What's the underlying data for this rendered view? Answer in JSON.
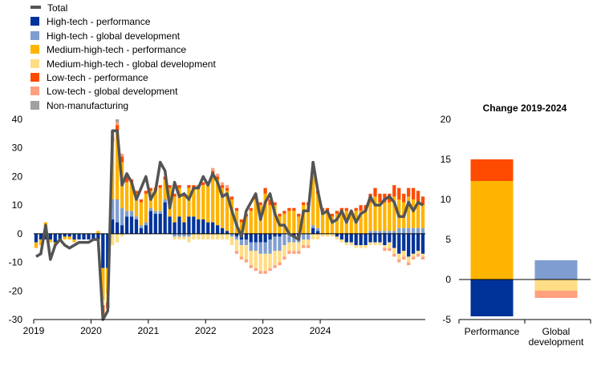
{
  "legend": [
    {
      "key": "total",
      "label": "Total",
      "color": "#545454",
      "type": "line"
    },
    {
      "key": "ht_perf",
      "label": "High-tech - performance",
      "color": "#003399",
      "type": "bar"
    },
    {
      "key": "ht_glob",
      "label": "High-tech - global development",
      "color": "#7f9dd0",
      "type": "bar"
    },
    {
      "key": "mht_perf",
      "label": "Medium-high-tech - performance",
      "color": "#ffb400",
      "type": "bar"
    },
    {
      "key": "mht_glob",
      "label": "Medium-high-tech - global development",
      "color": "#ffdd86",
      "type": "bar"
    },
    {
      "key": "lt_perf",
      "label": "Low-tech - performance",
      "color": "#ff4b00",
      "type": "bar"
    },
    {
      "key": "lt_glob",
      "label": "Low-tech - global development",
      "color": "#ffa07f",
      "type": "bar"
    },
    {
      "key": "nonman",
      "label": "Non-manufacturing",
      "color": "#a0a0a0",
      "type": "bar"
    }
  ],
  "chart_data": [
    {
      "type": "bar",
      "stacked": true,
      "title": "",
      "xlabel": "",
      "ylabel": "",
      "ylim": [
        -30,
        40
      ],
      "yticks": [
        -30,
        -20,
        -10,
        0,
        10,
        20,
        30,
        40
      ],
      "xticks": [
        "2019",
        "2020",
        "2021",
        "2022",
        "2023",
        "2024"
      ],
      "start": "2019-01",
      "frequency": "monthly",
      "series": [
        {
          "key": "ht_perf",
          "name": "High-tech - performance",
          "values": [
            -3,
            -2,
            -2,
            -2,
            -3,
            -2,
            -1,
            -1,
            -2,
            -2,
            -2,
            -2,
            -2,
            -2,
            -12,
            -12,
            5,
            4,
            3,
            6,
            6,
            5,
            2,
            3,
            8,
            7,
            7,
            11,
            6,
            4,
            6,
            4,
            6,
            6,
            5,
            5,
            4,
            4,
            3,
            2,
            1,
            0,
            -1,
            -2,
            -2,
            -3,
            -3,
            -3,
            -3,
            -2,
            -1,
            -1,
            0,
            0,
            -1,
            -1,
            0,
            0,
            2,
            1,
            0,
            0,
            0,
            -1,
            -2,
            -3,
            -3,
            -4,
            -4,
            -4,
            -3,
            -3,
            -3,
            -4,
            -3,
            -5,
            -7,
            -6,
            -8,
            -7,
            -6,
            -7
          ]
        },
        {
          "key": "ht_glob",
          "name": "High-tech - global development",
          "values": [
            0,
            0,
            1,
            0,
            0,
            0,
            0,
            0,
            0,
            0,
            0,
            0,
            0,
            0,
            0,
            0,
            7,
            8,
            6,
            2,
            2,
            1,
            1,
            1,
            1,
            1,
            1,
            1,
            0,
            -1,
            -1,
            -1,
            -1,
            0,
            0,
            0,
            0,
            0,
            0,
            0,
            0,
            -1,
            -1,
            -2,
            -2,
            -3,
            -3,
            -4,
            -4,
            -5,
            -5,
            -5,
            -4,
            -3,
            -2,
            -2,
            -2,
            -2,
            1,
            1,
            0,
            0,
            0,
            0,
            0,
            0,
            0,
            0,
            0,
            0,
            1,
            1,
            1,
            1,
            1,
            1,
            2,
            2,
            2,
            2,
            2,
            2
          ]
        },
        {
          "key": "mht_perf",
          "name": "Medium-high-tech - performance",
          "values": [
            -2,
            -2,
            3,
            -1,
            -1,
            0,
            -1,
            -1,
            -1,
            0,
            0,
            0,
            0,
            1,
            -11,
            -9,
            20,
            24,
            16,
            10,
            10,
            8,
            8,
            10,
            6,
            7,
            8,
            7,
            10,
            9,
            10,
            9,
            10,
            10,
            11,
            12,
            13,
            17,
            16,
            14,
            14,
            12,
            8,
            4,
            6,
            8,
            12,
            10,
            14,
            10,
            10,
            6,
            7,
            8,
            8,
            6,
            10,
            10,
            20,
            12,
            8,
            8,
            6,
            7,
            8,
            8,
            7,
            8,
            8,
            8,
            10,
            12,
            10,
            10,
            10,
            12,
            10,
            9,
            11,
            10,
            9,
            8
          ]
        },
        {
          "key": "mht_glob",
          "name": "Medium-high-tech - global development",
          "values": [
            0,
            0,
            0,
            0,
            0,
            0,
            0,
            0,
            0,
            0,
            0,
            0,
            0,
            0,
            -2,
            -3,
            -4,
            -3,
            -1,
            0,
            0,
            0,
            0,
            0,
            0,
            0,
            0,
            0,
            0,
            -1,
            -1,
            -1,
            -2,
            -2,
            -2,
            -2,
            -2,
            -2,
            -2,
            -2,
            -2,
            -3,
            -4,
            -4,
            -5,
            -5,
            -6,
            -6,
            -6,
            -5,
            -5,
            -4,
            -4,
            -3,
            -3,
            -3,
            -2,
            -2,
            -2,
            -2,
            -1,
            -1,
            -1,
            -1,
            -1,
            -1,
            -1,
            -1,
            -1,
            -1,
            -1,
            -1,
            -1,
            -1,
            -2,
            -2,
            -2,
            -2,
            -2,
            -1,
            -1,
            -1
          ]
        },
        {
          "key": "lt_perf",
          "name": "Low-tech - performance",
          "values": [
            0,
            0,
            0,
            0,
            0,
            0,
            0,
            0,
            0,
            0,
            0,
            0,
            0,
            0,
            -3,
            -2,
            2,
            2,
            2,
            2,
            1,
            1,
            1,
            1,
            1,
            1,
            1,
            1,
            1,
            1,
            1,
            1,
            1,
            1,
            1,
            1,
            1,
            1,
            1,
            1,
            1,
            1,
            1,
            1,
            1,
            1,
            1,
            1,
            2,
            2,
            1,
            1,
            1,
            1,
            1,
            1,
            1,
            1,
            1,
            1,
            1,
            1,
            1,
            1,
            1,
            1,
            1,
            1,
            2,
            2,
            3,
            3,
            3,
            3,
            3,
            4,
            4,
            3,
            3,
            4,
            4,
            3
          ]
        },
        {
          "key": "lt_glob",
          "name": "Low-tech - global development",
          "values": [
            0,
            0,
            0,
            0,
            0,
            0,
            0,
            0,
            0,
            0,
            0,
            0,
            0,
            0,
            0,
            0,
            1,
            1,
            1,
            0,
            0,
            0,
            0,
            0,
            0,
            0,
            0,
            0,
            0,
            0,
            0,
            0,
            0,
            0,
            0,
            0,
            0,
            1,
            1,
            1,
            1,
            0,
            -1,
            -1,
            -1,
            -1,
            -1,
            -1,
            -1,
            -1,
            -1,
            -1,
            -1,
            -1,
            -1,
            -1,
            -1,
            -1,
            1,
            0,
            0,
            0,
            0,
            0,
            0,
            0,
            0,
            0,
            0,
            0,
            0,
            0,
            0,
            -1,
            -1,
            -1,
            -1,
            -1,
            -1,
            -1,
            -1,
            -1
          ]
        },
        {
          "key": "nonman",
          "name": "Non-manufacturing",
          "values": [
            0,
            0,
            0,
            0,
            0,
            0,
            0,
            0,
            0,
            0,
            0,
            0,
            0,
            0,
            0,
            0,
            1,
            1,
            0,
            0,
            0,
            0,
            0,
            0,
            0,
            0,
            0,
            0,
            0,
            0,
            0,
            0,
            0,
            0,
            0,
            0,
            0,
            0,
            0,
            0,
            0,
            0,
            0,
            0,
            0,
            0,
            0,
            0,
            0,
            0,
            0,
            0,
            0,
            0,
            0,
            0,
            0,
            0,
            0,
            0,
            0,
            0,
            0,
            0,
            0,
            0,
            0,
            0,
            0,
            0,
            0,
            0,
            0,
            0,
            0,
            0,
            0,
            0,
            0,
            0,
            0,
            0
          ]
        },
        {
          "key": "total",
          "name": "Total",
          "type": "line",
          "values": [
            -8,
            -7,
            3,
            -9,
            -4,
            -2,
            -4,
            -5,
            -4,
            -3,
            -3,
            -3,
            -2,
            -2,
            -30,
            -27,
            36,
            36,
            17,
            21,
            18,
            12,
            16,
            20,
            12,
            15,
            25,
            22,
            9,
            18,
            13,
            14,
            12,
            16,
            16,
            20,
            17,
            21,
            18,
            13,
            14,
            8,
            3,
            -1,
            8,
            11,
            14,
            5,
            11,
            14,
            7,
            3,
            3,
            0,
            -1,
            -2,
            8,
            8,
            25,
            15,
            7,
            8,
            4,
            5,
            8,
            4,
            8,
            4,
            7,
            8,
            13,
            10,
            10,
            12,
            13,
            11,
            6,
            6,
            11,
            8,
            11,
            10
          ]
        }
      ]
    },
    {
      "type": "bar",
      "stacked": true,
      "title": "Change 2019-2024",
      "categories": [
        "Performance",
        "Global development"
      ],
      "ylim": [
        -5,
        20
      ],
      "yticks": [
        -5,
        0,
        5,
        10,
        15,
        20
      ],
      "series": [
        {
          "key": "ht_perf",
          "name": "High-tech - performance",
          "values": [
            -4.6,
            0
          ]
        },
        {
          "key": "ht_glob",
          "name": "High-tech - global development",
          "values": [
            0,
            2.4
          ]
        },
        {
          "key": "mht_perf",
          "name": "Medium-high-tech - performance",
          "values": [
            12.3,
            0
          ]
        },
        {
          "key": "mht_glob",
          "name": "Medium-high-tech - global development",
          "values": [
            0,
            -1.4
          ]
        },
        {
          "key": "lt_perf",
          "name": "Low-tech - performance",
          "values": [
            2.7,
            0
          ]
        },
        {
          "key": "lt_glob",
          "name": "Low-tech - global development",
          "values": [
            0,
            -0.9
          ]
        }
      ]
    }
  ]
}
